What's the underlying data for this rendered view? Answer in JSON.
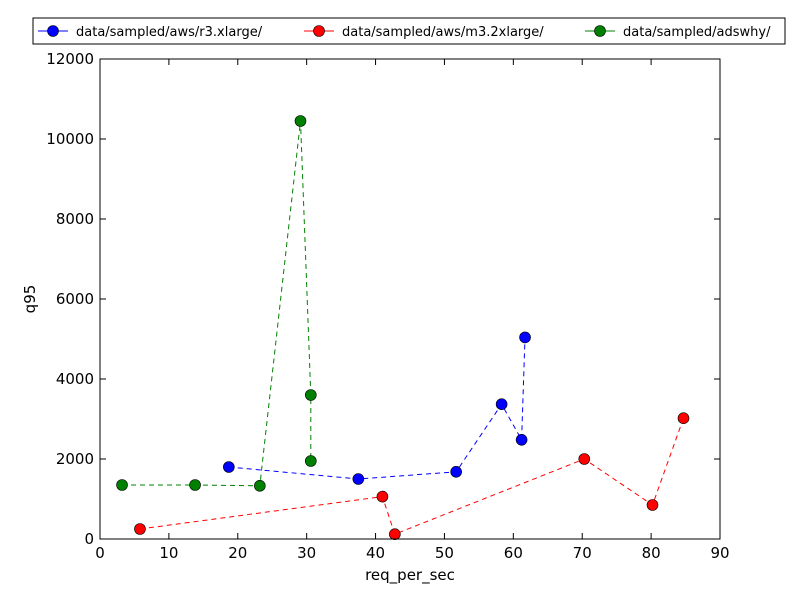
{
  "chart_data": {
    "type": "line",
    "xlabel": "req_per_sec",
    "ylabel": "q95",
    "xlim": [
      0,
      90
    ],
    "ylim": [
      0,
      12000
    ],
    "xticks": [
      0,
      10,
      20,
      30,
      40,
      50,
      60,
      70,
      80,
      90
    ],
    "yticks": [
      0,
      2000,
      4000,
      6000,
      8000,
      10000,
      12000
    ],
    "grid": false,
    "legend_position": "top",
    "series": [
      {
        "name": "data/sampled/aws/r3.xlarge/",
        "color": "#0000ff",
        "line_style": "dashed",
        "marker": "circle",
        "x": [
          18.7,
          37.5,
          51.7,
          58.3,
          61.2,
          61.7
        ],
        "y": [
          1800,
          1500,
          1680,
          3370,
          2480,
          5040
        ]
      },
      {
        "name": "data/sampled/aws/m3.2xlarge/",
        "color": "#ff0000",
        "line_style": "dashed",
        "marker": "circle",
        "x": [
          5.8,
          41.0,
          42.8,
          70.3,
          80.2,
          84.7
        ],
        "y": [
          250,
          1060,
          120,
          2000,
          850,
          3020
        ]
      },
      {
        "name": "data/sampled/adswhy/",
        "color": "#008000",
        "line_style": "dashed",
        "marker": "circle",
        "x": [
          3.2,
          13.8,
          23.2,
          29.1,
          30.6,
          30.6
        ],
        "y": [
          1350,
          1350,
          1330,
          10450,
          3600,
          1950
        ]
      }
    ]
  }
}
